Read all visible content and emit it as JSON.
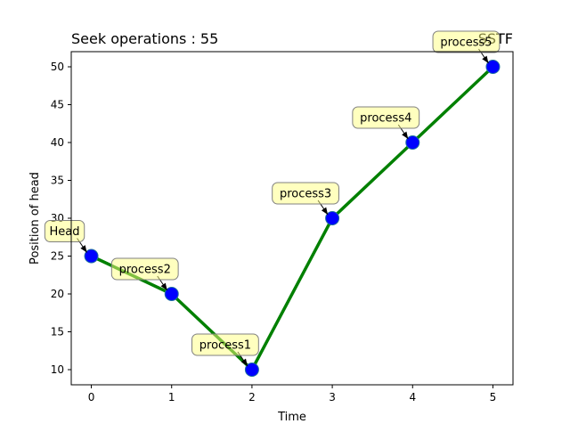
{
  "chart_data": {
    "type": "line",
    "left_title": "Seek operations : 55",
    "right_title": "SSTF",
    "xlabel": "Time",
    "ylabel": "Position of head",
    "xlim": [
      -0.25,
      5.25
    ],
    "ylim": [
      8,
      52
    ],
    "x_ticks": [
      0,
      1,
      2,
      3,
      4,
      5
    ],
    "y_ticks": [
      10,
      15,
      20,
      25,
      30,
      35,
      40,
      45,
      50
    ],
    "grid": false,
    "series": [
      {
        "x": [
          0,
          1,
          2,
          3,
          4,
          5
        ],
        "y": [
          25,
          20,
          10,
          30,
          40,
          50
        ]
      }
    ],
    "annotations": [
      {
        "label": "Head",
        "x": 0,
        "y": 25
      },
      {
        "label": "process2",
        "x": 1,
        "y": 20
      },
      {
        "label": "process1",
        "x": 2,
        "y": 10
      },
      {
        "label": "process3",
        "x": 3,
        "y": 30
      },
      {
        "label": "process4",
        "x": 4,
        "y": 40
      },
      {
        "label": "process5",
        "x": 5,
        "y": 50
      }
    ],
    "colors": {
      "line": "#008000",
      "marker_fill": "#0000ff",
      "marker_edge": "#1f6f9f",
      "label_box": "#ffff80",
      "label_edge": "#808080"
    }
  }
}
